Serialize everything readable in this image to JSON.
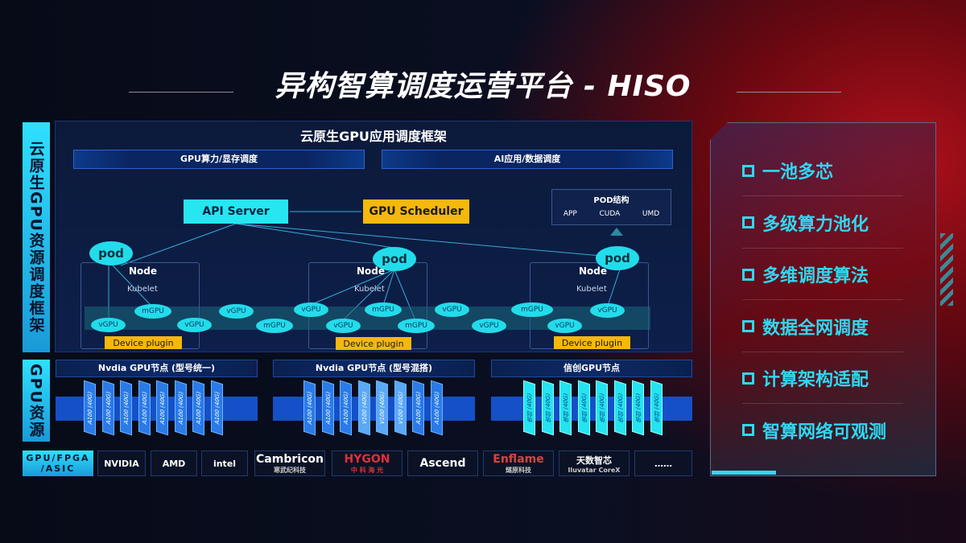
{
  "title": "异构智算调度运营平台 - HISO",
  "left_labels": {
    "framework": "云原生GPU资源调度框架",
    "resources": "GPU资源"
  },
  "framework": {
    "title": "云原生GPU应用调度框架",
    "bars": [
      "GPU算力/显存调度",
      "AI应用/数据调度"
    ],
    "api_server": "API Server",
    "gpu_scheduler": "GPU Scheduler",
    "pod_structure": {
      "title": "POD结构",
      "items": [
        "APP",
        "CUDA",
        "UMD"
      ]
    },
    "pod_label": "pod",
    "node_label": "Node",
    "kubelet_label": "Kubelet",
    "device_plugin": "Device plugin",
    "vgpu": "vGPU",
    "mgpu": "mGPU"
  },
  "resources": {
    "nodes": [
      {
        "title": "Nvdia GPU节点 (型号统一)",
        "cards": [
          "A100 (40G)",
          "A100 (40G)",
          "A100 (40G)",
          "A100 (40G)",
          "A100 (40G)",
          "A100 (40G)",
          "A100 (40G)",
          "A100 (40G)"
        ]
      },
      {
        "title": "Nvdia GPU节点 (型号混搭)",
        "cards": [
          "A100 (40G)",
          "A100 (40G)",
          "A100 (40G)",
          "V100 (40G)",
          "V100 (40G)",
          "V100 (40G)",
          "A100 (40G)",
          "A100 (40G)"
        ]
      },
      {
        "title": "信创GPU节点",
        "cards": [
          "信创 (40G)",
          "信创 (40G)",
          "信创 (40G)",
          "信创 (40G)",
          "信创 (40G)",
          "信创 (40G)",
          "信创 (40G)",
          "信创 (40G)"
        ]
      }
    ]
  },
  "vendors": {
    "label": "GPU/FPGA /ASIC",
    "items": [
      {
        "name": "NVIDIA",
        "sub": ""
      },
      {
        "name": "AMD",
        "sub": ""
      },
      {
        "name": "intel",
        "sub": ""
      },
      {
        "name": "Cambricon",
        "sub": "寒武纪科技"
      },
      {
        "name": "HYGON",
        "sub": "中 科 海 光"
      },
      {
        "name": "Ascend",
        "sub": ""
      },
      {
        "name": "Enflame",
        "sub": "燧原科技"
      },
      {
        "name": "天数智芯",
        "sub": "Iluvatar CoreX"
      },
      {
        "name": "……",
        "sub": ""
      }
    ]
  },
  "features": [
    "一池多芯",
    "多级算力池化",
    "多维调度算法",
    "数据全网调度",
    "计算架构适配",
    "智算网络可观测"
  ],
  "colors": {
    "cyan": "#26e6f0",
    "yellow": "#f5b80c",
    "blue": "#1550c8",
    "red": "#b0101c"
  }
}
